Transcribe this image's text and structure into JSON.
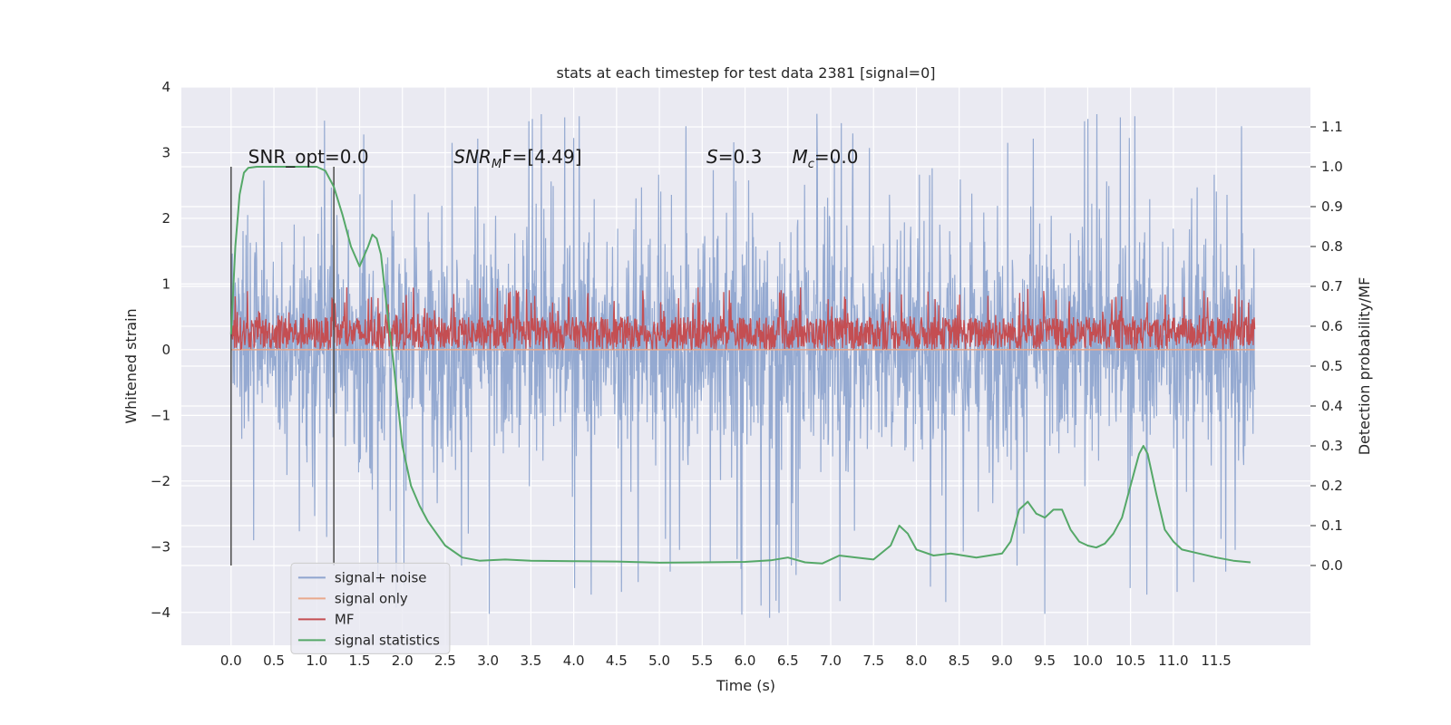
{
  "chart_data": {
    "type": "line",
    "title": "stats at each timestep for test data 2381 [signal=0]",
    "xlabel": "Time (s)",
    "ylabel": "Whitened strain",
    "ylabel_right": "Detection probability/MF",
    "xlim": [
      -0.58,
      12.6
    ],
    "ylim": [
      -4.5,
      4.0
    ],
    "ylim_right": [
      -0.2,
      1.2
    ],
    "x_ticks": [
      "0.0",
      "0.5",
      "1.0",
      "1.5",
      "2.0",
      "2.5",
      "3.0",
      "3.5",
      "4.0",
      "4.5",
      "5.0",
      "5.5",
      "6.0",
      "6.5",
      "7.0",
      "7.5",
      "8.0",
      "8.5",
      "9.0",
      "9.5",
      "10.0",
      "10.5",
      "11.0",
      "11.5"
    ],
    "y_ticks": [
      "4",
      "3",
      "2",
      "1",
      "0",
      "−1",
      "−2",
      "−3",
      "−4"
    ],
    "y_ticks_right": [
      "1.1",
      "1.0",
      "0.9",
      "0.8",
      "0.7",
      "0.6",
      "0.5",
      "0.4",
      "0.3",
      "0.2",
      "0.1",
      "0.0"
    ],
    "grid": true,
    "legend_position": "lower-left",
    "annotations": {
      "snr_opt": "SNR_opt=0.0",
      "snr_mf_name": "SNR",
      "snr_mf_sub": "M",
      "snr_mf_rest": "F=[4.49]",
      "s_sym": "S",
      "s_val": "=0.3",
      "mc_sym": "M",
      "mc_sub": "c",
      "mc_val": "=0.0"
    },
    "vertical_lines_x": [
      0.0,
      1.2
    ],
    "series": [
      {
        "name": "signal+ noise",
        "color": "#8fa5cf",
        "axis": "left",
        "x_range": [
          0.0,
          11.95
        ],
        "typical_range": [
          -1.4,
          1.6
        ],
        "extreme_range": [
          -4.1,
          3.6
        ]
      },
      {
        "name": "signal only",
        "color": "#e9a98c",
        "axis": "left",
        "x_range": [
          0.0,
          11.95
        ],
        "values_constant": 0.0
      },
      {
        "name": "MF",
        "color": "#c44e52",
        "axis": "left",
        "x_range": [
          0.0,
          11.95
        ],
        "typical_range": [
          0.0,
          0.5
        ],
        "extreme_range": [
          0.0,
          0.95
        ]
      },
      {
        "name": "signal statistics",
        "color": "#55a868",
        "axis": "right",
        "x": [
          0.0,
          0.05,
          0.1,
          0.15,
          0.2,
          0.3,
          0.5,
          0.8,
          1.0,
          1.1,
          1.2,
          1.3,
          1.4,
          1.5,
          1.6,
          1.65,
          1.7,
          1.75,
          1.8,
          1.9,
          2.0,
          2.1,
          2.2,
          2.3,
          2.5,
          2.7,
          2.9,
          3.2,
          3.5,
          4.0,
          4.5,
          5.0,
          5.5,
          6.0,
          6.3,
          6.5,
          6.7,
          6.9,
          7.1,
          7.3,
          7.5,
          7.7,
          7.8,
          7.9,
          8.0,
          8.2,
          8.4,
          8.7,
          9.0,
          9.1,
          9.2,
          9.3,
          9.4,
          9.5,
          9.6,
          9.7,
          9.8,
          9.9,
          10.0,
          10.1,
          10.2,
          10.3,
          10.4,
          10.5,
          10.6,
          10.65,
          10.7,
          10.8,
          10.9,
          11.0,
          11.1,
          11.3,
          11.5,
          11.7,
          11.9
        ],
        "values": [
          0.58,
          0.8,
          0.93,
          0.985,
          0.997,
          1.0,
          1.0,
          1.0,
          1.0,
          0.99,
          0.95,
          0.88,
          0.8,
          0.75,
          0.8,
          0.83,
          0.82,
          0.78,
          0.68,
          0.5,
          0.3,
          0.2,
          0.15,
          0.11,
          0.05,
          0.02,
          0.012,
          0.015,
          0.012,
          0.011,
          0.01,
          0.007,
          0.008,
          0.009,
          0.013,
          0.02,
          0.008,
          0.005,
          0.025,
          0.02,
          0.015,
          0.05,
          0.1,
          0.08,
          0.04,
          0.025,
          0.03,
          0.02,
          0.03,
          0.06,
          0.14,
          0.16,
          0.13,
          0.12,
          0.14,
          0.14,
          0.09,
          0.06,
          0.05,
          0.045,
          0.055,
          0.08,
          0.12,
          0.2,
          0.28,
          0.3,
          0.28,
          0.18,
          0.09,
          0.06,
          0.04,
          0.03,
          0.02,
          0.012,
          0.008
        ]
      }
    ]
  }
}
